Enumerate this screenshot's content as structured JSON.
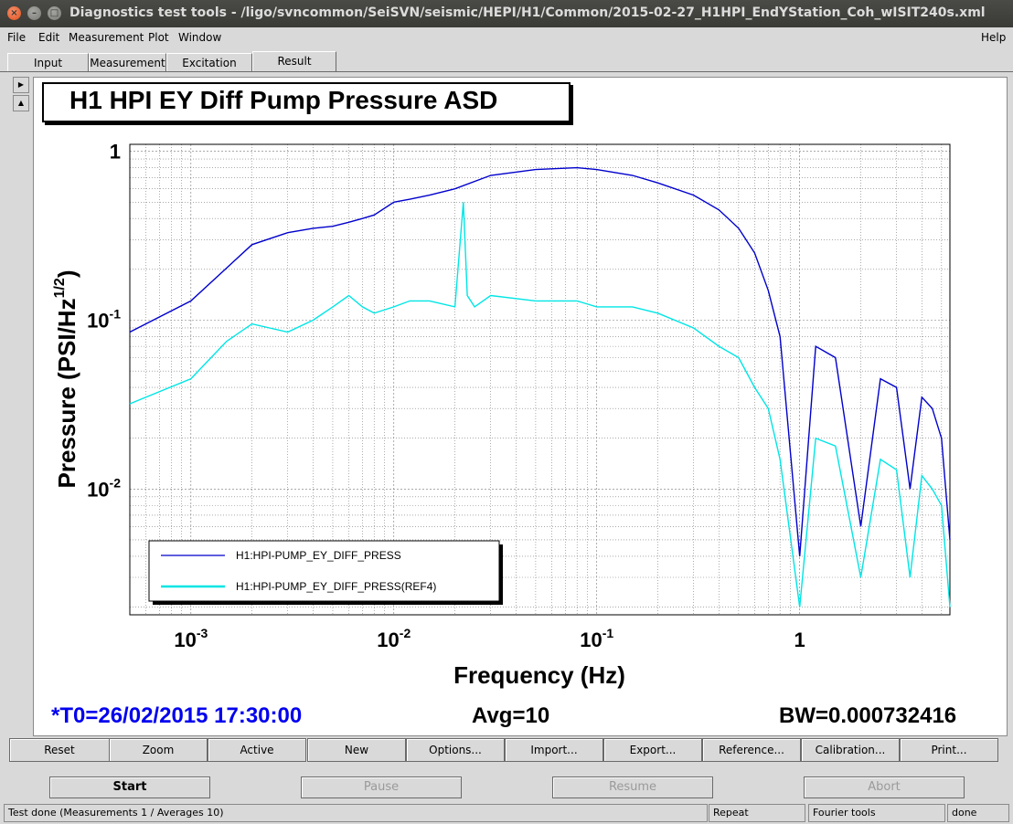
{
  "window": {
    "title": "Diagnostics test tools - /ligo/svncommon/SeiSVN/seismic/HEPI/H1/Common/2015-02-27_H1HPI_EndYStation_Coh_wISIT240s.xml"
  },
  "menubar": {
    "file": "File",
    "edit": "Edit",
    "measurement": "Measurement",
    "plot": "Plot",
    "window": "Window",
    "help": "Help"
  },
  "tabs": {
    "input": "Input",
    "measurement": "Measurement",
    "excitation": "Excitation",
    "result": "Result",
    "active": "Result"
  },
  "plot": {
    "title": "H1 HPI EY Diff Pump Pressure ASD",
    "t0": "*T0=26/02/2015 17:30:00",
    "avg": "Avg=10",
    "bw": "BW=0.000732416"
  },
  "chart_data": {
    "type": "line",
    "title": "H1 HPI EY Diff Pump Pressure ASD",
    "xlabel": "Frequency (Hz)",
    "ylabel": "Pressure (PSI/Hz^1/2)",
    "xscale": "log",
    "yscale": "log",
    "xlim": [
      0.0005,
      5.5
    ],
    "ylim": [
      0.0018,
      1.1
    ],
    "grid": true,
    "legend_position": "bottom-left",
    "x_tick_labels": [
      "10-3",
      "10-2",
      "10-1",
      "1"
    ],
    "y_tick_labels": [
      "1",
      "10-1",
      "10-2"
    ],
    "series": [
      {
        "name": "H1:HPI-PUMP_EY_DIFF_PRESS",
        "color": "#0000cc",
        "x": [
          0.0005,
          0.001,
          0.002,
          0.003,
          0.004,
          0.005,
          0.006,
          0.007,
          0.008,
          0.01,
          0.012,
          0.015,
          0.02,
          0.03,
          0.05,
          0.08,
          0.1,
          0.15,
          0.2,
          0.3,
          0.4,
          0.5,
          0.6,
          0.7,
          0.8,
          1.0,
          1.2,
          1.5,
          2.0,
          2.5,
          3.0,
          3.5,
          4.0,
          4.5,
          5.0,
          5.5
        ],
        "y": [
          0.085,
          0.13,
          0.28,
          0.33,
          0.35,
          0.36,
          0.38,
          0.4,
          0.42,
          0.5,
          0.52,
          0.55,
          0.6,
          0.72,
          0.78,
          0.8,
          0.78,
          0.72,
          0.65,
          0.55,
          0.45,
          0.35,
          0.25,
          0.15,
          0.08,
          0.004,
          0.07,
          0.06,
          0.006,
          0.045,
          0.04,
          0.01,
          0.035,
          0.03,
          0.02,
          0.005
        ]
      },
      {
        "name": "H1:HPI-PUMP_EY_DIFF_PRESS(REF4)",
        "color": "#00e5e5",
        "x": [
          0.0005,
          0.001,
          0.0015,
          0.002,
          0.003,
          0.004,
          0.005,
          0.006,
          0.007,
          0.008,
          0.01,
          0.012,
          0.015,
          0.02,
          0.022,
          0.023,
          0.025,
          0.03,
          0.05,
          0.08,
          0.1,
          0.15,
          0.2,
          0.3,
          0.4,
          0.5,
          0.6,
          0.7,
          0.8,
          1.0,
          1.2,
          1.5,
          2.0,
          2.5,
          3.0,
          3.5,
          4.0,
          4.5,
          5.0,
          5.5
        ],
        "y": [
          0.032,
          0.045,
          0.075,
          0.095,
          0.085,
          0.1,
          0.12,
          0.14,
          0.12,
          0.11,
          0.12,
          0.13,
          0.13,
          0.12,
          0.5,
          0.14,
          0.12,
          0.14,
          0.13,
          0.13,
          0.12,
          0.12,
          0.11,
          0.09,
          0.07,
          0.06,
          0.04,
          0.03,
          0.015,
          0.002,
          0.02,
          0.018,
          0.003,
          0.015,
          0.013,
          0.003,
          0.012,
          0.01,
          0.008,
          0.002
        ]
      }
    ]
  },
  "buttons": {
    "reset": "Reset",
    "zoom": "Zoom",
    "active": "Active",
    "new": "New",
    "options": "Options...",
    "import": "Import...",
    "export": "Export...",
    "reference": "Reference...",
    "calibration": "Calibration...",
    "print": "Print..."
  },
  "controls": {
    "start": "Start",
    "pause": "Pause",
    "resume": "Resume",
    "abort": "Abort"
  },
  "status": {
    "message": "Test done (Measurements 1 / Averages 10)",
    "mode": "Repeat",
    "tool": "Fourier tools",
    "state": "done"
  }
}
